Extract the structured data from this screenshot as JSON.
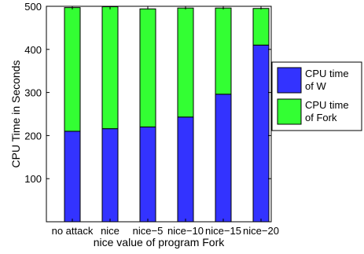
{
  "chart_data": {
    "type": "bar",
    "stacked": true,
    "categories": [
      "no attack",
      "nice",
      "nice−5",
      "nice−10",
      "nice−15",
      "nice−20"
    ],
    "series": [
      {
        "name_lines": [
          "CPU time",
          "of W"
        ],
        "color": "#3333ff",
        "values": [
          210,
          216,
          220,
          243,
          296,
          410
        ]
      },
      {
        "name_lines": [
          "CPU time",
          "of Fork"
        ],
        "color": "#33ff33",
        "values": [
          287,
          283,
          274,
          253,
          200,
          85
        ]
      }
    ],
    "xlabel": "nice value of program Fork",
    "ylabel": "CPU Time in Seconds",
    "ylim": [
      0,
      500
    ],
    "yticks": [
      0,
      100,
      200,
      300,
      400,
      500
    ],
    "ytick_labels": [
      "",
      "100",
      "200",
      "300",
      "400",
      "500"
    ],
    "grid": false,
    "legend_position": "right"
  }
}
